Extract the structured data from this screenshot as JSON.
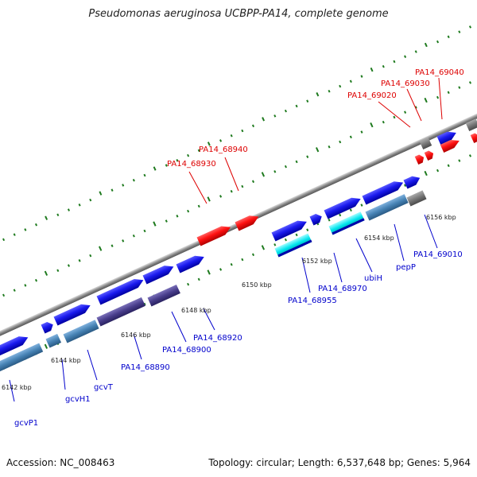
{
  "title": "Pseudomonas aeruginosa UCBPP-PA14, complete genome",
  "footer": {
    "accession": "Accession: NC_008463",
    "topology": "Topology: circular; Length: 6,537,648 bp; Genes: 5,964"
  },
  "colors": {
    "forward_cds": "#1a1aee",
    "reverse_cds": "#ff1111",
    "rna_gray": "#777777",
    "gene_steelblue": "#4682b4",
    "gene_slateblue": "#483d8b",
    "gene_cyan": "#00e5ee",
    "tick_green": "#1e7a1e",
    "backbone": "#999999",
    "label_blue": "#0000cc",
    "label_red": "#dd0000"
  },
  "ticks": [
    "6142 kbp",
    "6144 kbp",
    "6146 kbp",
    "6148 kbp",
    "6150 kbp",
    "6152 kbp",
    "6154 kbp",
    "6156 kbp"
  ],
  "labels_reverse": [
    "PA14_68930",
    "PA14_68940",
    "PA14_69020",
    "PA14_69030",
    "PA14_69040"
  ],
  "labels_forward": [
    "gcvP1",
    "gcvH1",
    "gcvT",
    "PA14_68890",
    "PA14_68900",
    "PA14_68920",
    "PA14_68955",
    "PA14_68970",
    "ubiH",
    "pepP",
    "PA14_69010"
  ]
}
